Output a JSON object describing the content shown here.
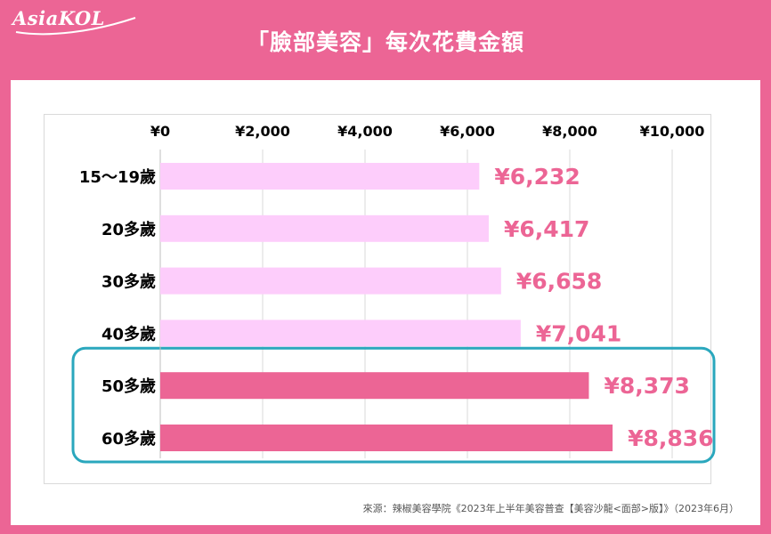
{
  "brand": {
    "logo_text": "AsiaKOL"
  },
  "title": "「臉部美容」每次花費金額",
  "source": "來源：辣椒美容學院《2023年上半年美容普查【美容沙龍<面部>版】》（2023年6月）",
  "colors": {
    "frame": "#ec6595",
    "bar_light": "#fdcdfb",
    "bar_highlight": "#ec6595",
    "value_label": "#ec6595",
    "highlight_box": "#2aa7bd"
  },
  "chart_data": {
    "type": "bar",
    "orientation": "horizontal",
    "categories": [
      "15～19歲",
      "20多歲",
      "30多歲",
      "40多歲",
      "50多歲",
      "60多歲"
    ],
    "values": [
      6232,
      6417,
      6658,
      7041,
      8373,
      8836
    ],
    "value_labels": [
      "¥6,232",
      "¥6,417",
      "¥6,658",
      "¥7,041",
      "¥8,373",
      "¥8,836"
    ],
    "highlighted": [
      false,
      false,
      false,
      false,
      true,
      true
    ],
    "xlim": [
      0,
      10000
    ],
    "xticks": [
      0,
      2000,
      4000,
      6000,
      8000,
      10000
    ],
    "xtick_labels": [
      "¥0",
      "¥2,000",
      "¥4,000",
      "¥6,000",
      "¥8,000",
      "¥10,000"
    ],
    "axis_position": "top",
    "grid": true,
    "title": "",
    "xlabel": "",
    "ylabel": ""
  }
}
